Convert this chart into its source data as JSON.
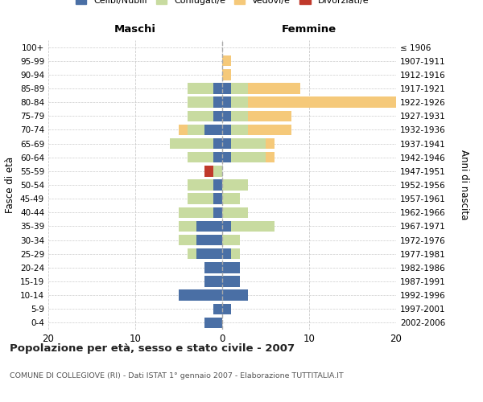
{
  "age_groups": [
    "0-4",
    "5-9",
    "10-14",
    "15-19",
    "20-24",
    "25-29",
    "30-34",
    "35-39",
    "40-44",
    "45-49",
    "50-54",
    "55-59",
    "60-64",
    "65-69",
    "70-74",
    "75-79",
    "80-84",
    "85-89",
    "90-94",
    "95-99",
    "100+"
  ],
  "birth_years": [
    "2002-2006",
    "1997-2001",
    "1992-1996",
    "1987-1991",
    "1982-1986",
    "1977-1981",
    "1972-1976",
    "1967-1971",
    "1962-1966",
    "1957-1961",
    "1952-1956",
    "1947-1951",
    "1942-1946",
    "1937-1941",
    "1932-1936",
    "1927-1931",
    "1922-1926",
    "1917-1921",
    "1912-1916",
    "1907-1911",
    "≤ 1906"
  ],
  "maschi": {
    "celibi": [
      2,
      1,
      5,
      2,
      2,
      3,
      3,
      3,
      1,
      1,
      1,
      0,
      1,
      1,
      2,
      1,
      1,
      1,
      0,
      0,
      0
    ],
    "coniugati": [
      0,
      0,
      0,
      0,
      0,
      1,
      2,
      2,
      4,
      3,
      3,
      1,
      3,
      5,
      2,
      3,
      3,
      3,
      0,
      0,
      0
    ],
    "vedovi": [
      0,
      0,
      0,
      0,
      0,
      0,
      0,
      0,
      0,
      0,
      0,
      0,
      0,
      0,
      1,
      0,
      0,
      0,
      0,
      0,
      0
    ],
    "divorziati": [
      0,
      0,
      0,
      0,
      0,
      0,
      0,
      0,
      0,
      0,
      0,
      1,
      0,
      0,
      0,
      0,
      0,
      0,
      0,
      0,
      0
    ]
  },
  "femmine": {
    "nubili": [
      0,
      1,
      3,
      2,
      2,
      1,
      0,
      1,
      0,
      0,
      0,
      0,
      1,
      1,
      1,
      1,
      1,
      1,
      0,
      0,
      0
    ],
    "coniugate": [
      0,
      0,
      0,
      0,
      0,
      1,
      2,
      5,
      3,
      2,
      3,
      0,
      4,
      4,
      2,
      2,
      2,
      2,
      0,
      0,
      0
    ],
    "vedove": [
      0,
      0,
      0,
      0,
      0,
      0,
      0,
      0,
      0,
      0,
      0,
      0,
      1,
      1,
      5,
      5,
      17,
      6,
      1,
      1,
      0
    ],
    "divorziate": [
      0,
      0,
      0,
      0,
      0,
      0,
      0,
      0,
      0,
      0,
      0,
      0,
      0,
      0,
      0,
      0,
      0,
      0,
      0,
      0,
      0
    ]
  },
  "colors": {
    "celibi_nubili": "#4a6fa5",
    "coniugati": "#c8dba0",
    "vedovi": "#f5c97a",
    "divorziati": "#c0392b"
  },
  "xlim": [
    -20,
    20
  ],
  "xticks": [
    -20,
    -10,
    0,
    10,
    20
  ],
  "xticklabels": [
    "20",
    "10",
    "0",
    "10",
    "20"
  ],
  "title": "Popolazione per età, sesso e stato civile - 2007",
  "subtitle": "COMUNE DI COLLEGIOVE (RI) - Dati ISTAT 1° gennaio 2007 - Elaborazione TUTTITALIA.IT",
  "ylabel_left": "Fasce di età",
  "ylabel_right": "Anni di nascita",
  "header_left": "Maschi",
  "header_right": "Femmine",
  "bg_color": "#ffffff",
  "grid_color": "#cccccc"
}
